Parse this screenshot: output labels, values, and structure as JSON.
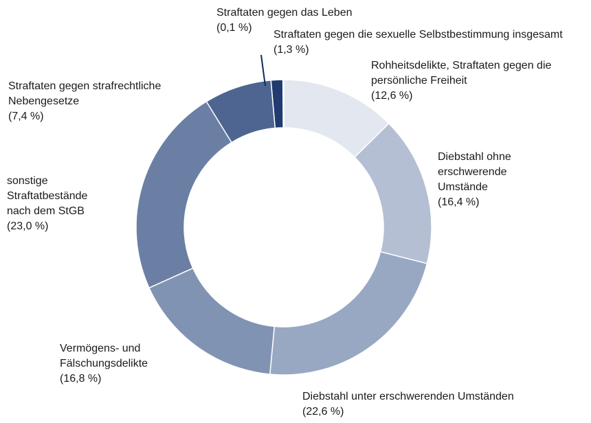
{
  "chart_data": {
    "type": "donut",
    "categories": [
      "Rohheitsdelikte, Straftaten gegen die persönliche Freiheit",
      "Diebstahl ohne erschwerende Umstände",
      "Diebstahl unter erschwerenden Umständen",
      "Vermögens- und Fälschungsdelikte",
      "sonstige Straftatbestände nach dem StGB",
      "Straftaten gegen strafrechtliche Nebengesetze",
      "Straftaten gegen die sexuelle Selbstbestimmung insgesamt",
      "Straftaten gegen das Leben"
    ],
    "values": [
      12.6,
      16.4,
      22.6,
      16.8,
      23.0,
      7.4,
      1.3,
      0.1
    ],
    "value_labels": [
      "(12,6 %)",
      "(16,4 %)",
      "(22,6 %)",
      "(16,8 %)",
      "(23,0 %)",
      "(7,4 %)",
      "(1,3 %)",
      "(0,1 %)"
    ],
    "colors": [
      "#e3e7ef",
      "#b4bfd3",
      "#98a8c3",
      "#8193b3",
      "#6a7fa3",
      "#4d6590",
      "#1f3b70",
      "#0d2a5e"
    ]
  }
}
